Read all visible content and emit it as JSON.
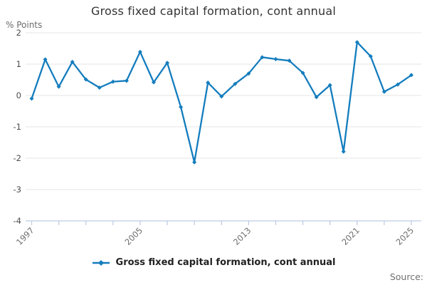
{
  "title": "Gross fixed capital formation, cont annual",
  "y_axis_title": "% Points",
  "legend": {
    "label": "Gross fixed capital formation, cont annual"
  },
  "source_label": "Source:",
  "colors": {
    "line": "#147dbe",
    "grid": "#e6e6e6",
    "axis": "#bfcde4",
    "x_tick_label": "#6e6e6e",
    "y_tick_label": "#4d4d4d",
    "title": "#333333",
    "legend_text": "#222222",
    "source_text": "#707070"
  },
  "chart_data": {
    "type": "line",
    "title": "Gross fixed capital formation, cont annual",
    "xlabel": "",
    "ylabel": "% Points",
    "ylim": [
      -4,
      2
    ],
    "y_ticks": [
      2,
      1,
      0,
      -1,
      -2,
      -3,
      -4
    ],
    "x_range": [
      1997,
      2025
    ],
    "x_minor_tick_step_years": 2,
    "x_tick_labels": [
      "1997",
      "2005",
      "2013",
      "2021",
      "2025"
    ],
    "grid": "horizontal",
    "legend_position": "bottom",
    "marker": "diamond",
    "x": [
      1997,
      1998,
      1999,
      2000,
      2001,
      2002,
      2003,
      2004,
      2005,
      2006,
      2007,
      2008,
      2009,
      2010,
      2011,
      2012,
      2013,
      2014,
      2015,
      2016,
      2017,
      2018,
      2019,
      2020,
      2021,
      2022,
      2023,
      2024,
      2025
    ],
    "series": [
      {
        "name": "Gross fixed capital formation, cont annual",
        "values": [
          -0.1,
          1.15,
          0.28,
          1.07,
          0.51,
          0.25,
          0.44,
          0.47,
          1.39,
          0.42,
          1.04,
          -0.37,
          -2.13,
          0.41,
          -0.03,
          0.37,
          0.7,
          1.22,
          1.16,
          1.11,
          0.72,
          -0.05,
          0.33,
          -1.79,
          1.7,
          1.25,
          0.12,
          0.35,
          0.65
        ]
      }
    ]
  }
}
